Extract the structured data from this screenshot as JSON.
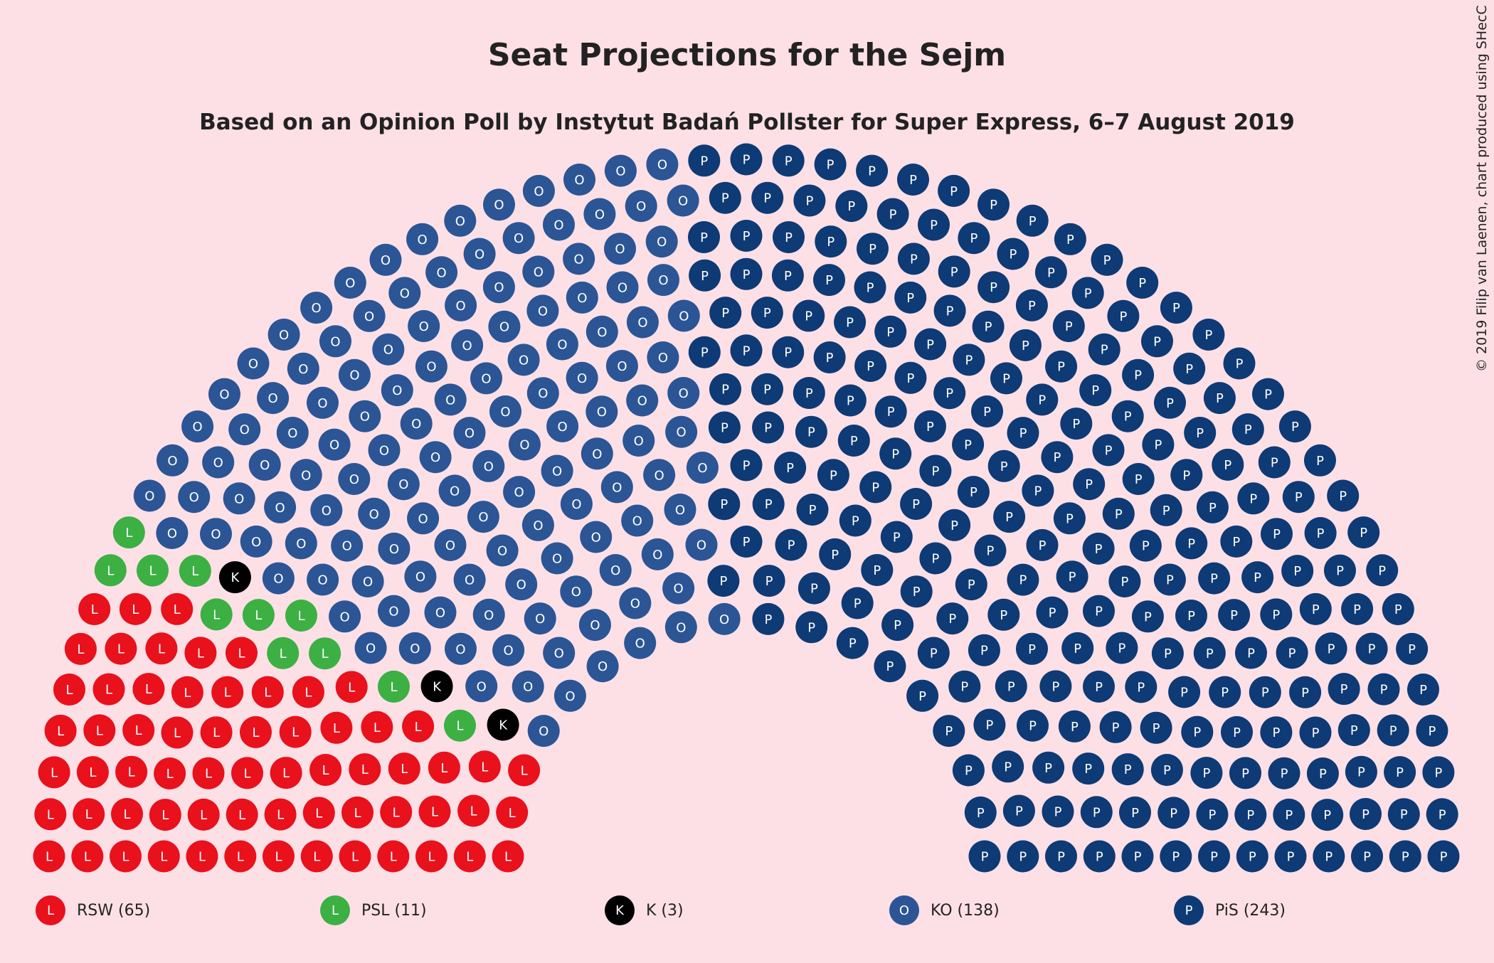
{
  "title": "Seat Projections for the Sejm",
  "subtitle": "Based on an Opinion Poll by Instytut Badań Pollster for Super Express, 6–7 August 2019",
  "credit": "© 2019 Filip van Laenen, chart produced using SHecC",
  "chart_data": {
    "type": "parliament",
    "total_seats": 460,
    "parties": [
      {
        "name": "RSW",
        "seats": 65,
        "letter": "L",
        "color": "#e8111c",
        "legend": "RSW (65)"
      },
      {
        "name": "PSL",
        "seats": 11,
        "letter": "L",
        "color": "#3cb043",
        "legend": "PSL (11)"
      },
      {
        "name": "K",
        "seats": 3,
        "letter": "K",
        "color": "#000000",
        "legend": "K (3)"
      },
      {
        "name": "KO",
        "seats": 138,
        "letter": "O",
        "color": "#2b5595",
        "legend": "KO (138)"
      },
      {
        "name": "PiS",
        "seats": 243,
        "letter": "P",
        "color": "#0e3a75",
        "legend": "PiS (243)"
      }
    ]
  }
}
